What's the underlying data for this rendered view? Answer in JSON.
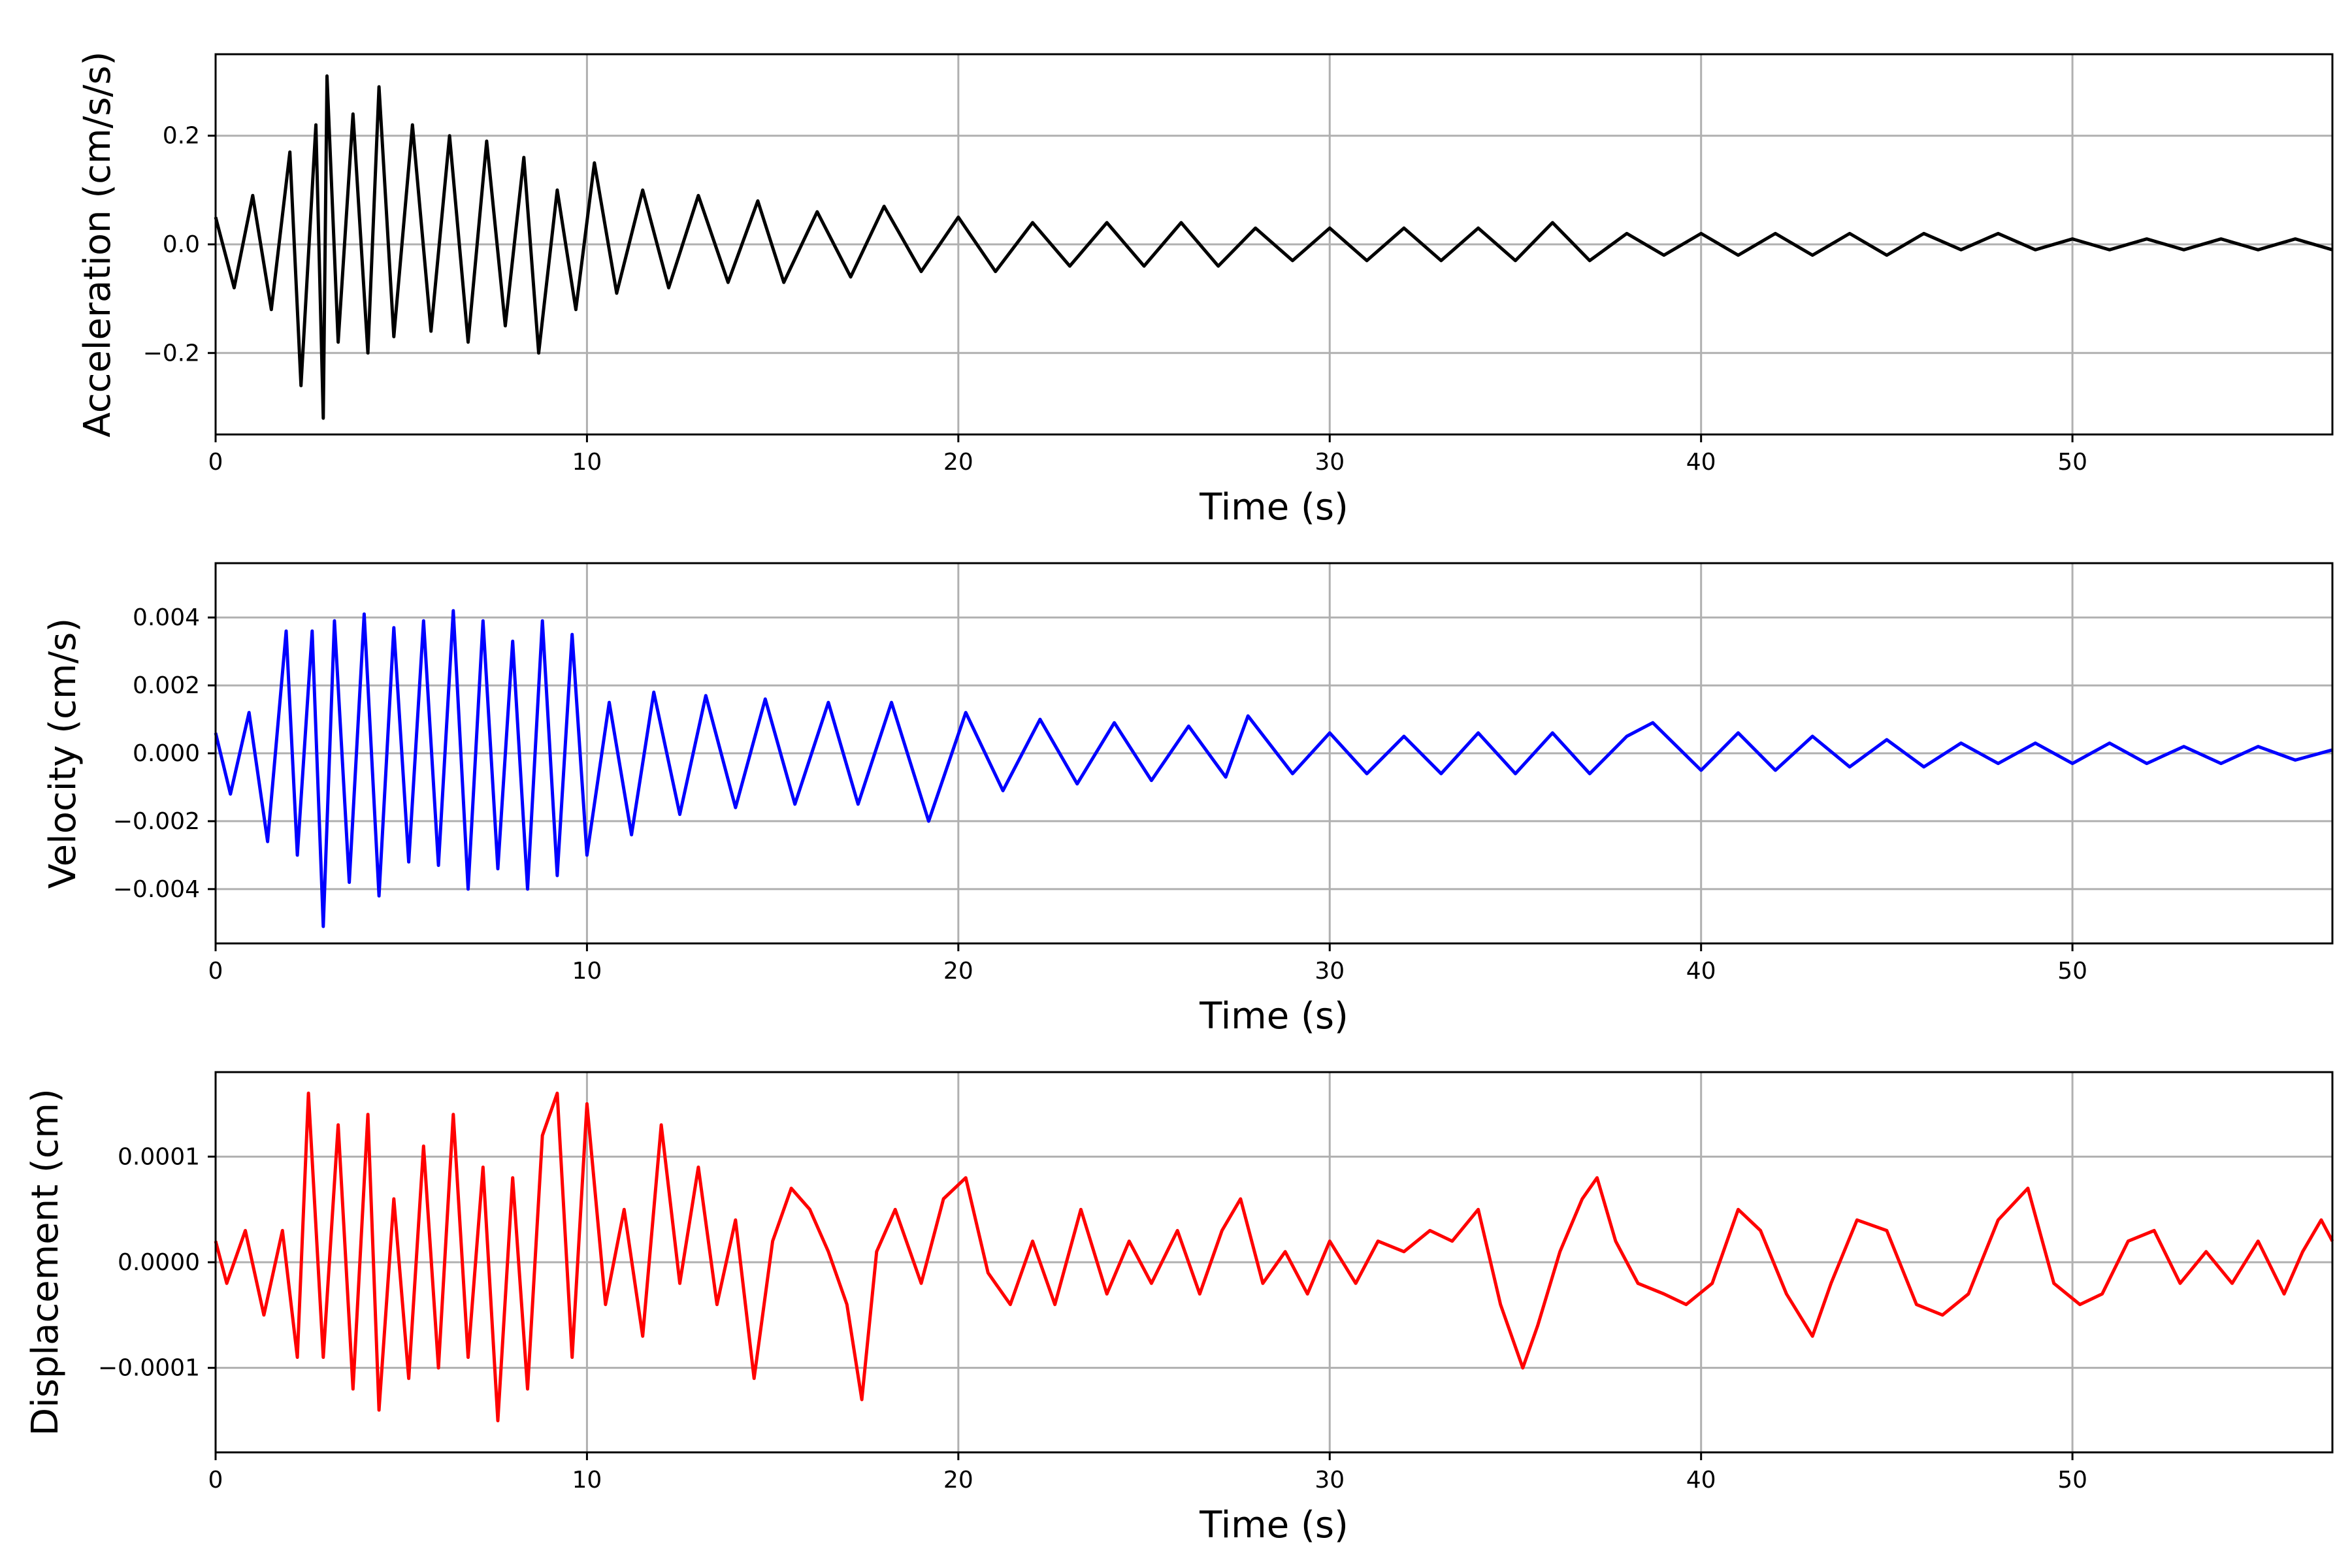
{
  "chart_data": [
    {
      "id": "acceleration",
      "type": "line",
      "title": "",
      "xlabel": "Time (s)",
      "ylabel": "Acceleration (cm/s/s)",
      "xlim": [
        0,
        57
      ],
      "ylim": [
        -0.35,
        0.35
      ],
      "xticks": [
        0,
        10,
        20,
        30,
        40,
        50
      ],
      "xtick_labels": [
        "0",
        "10",
        "20",
        "30",
        "40",
        "50"
      ],
      "yticks": [
        -0.2,
        0.0,
        0.2
      ],
      "ytick_labels": [
        "−0.2",
        "0.0",
        "0.2"
      ],
      "grid": true,
      "legend": "none",
      "series": [
        {
          "color": "#000000",
          "x": [
            0,
            0.5,
            1,
            1.5,
            2,
            2.3,
            2.7,
            2.9,
            3.0,
            3.3,
            3.7,
            4.1,
            4.4,
            4.8,
            5.3,
            5.8,
            6.3,
            6.8,
            7.3,
            7.8,
            8.3,
            8.7,
            9.2,
            9.7,
            10.2,
            10.8,
            11.5,
            12.2,
            13,
            13.8,
            14.6,
            15.3,
            16.2,
            17.1,
            18,
            19,
            20,
            21,
            22,
            23,
            24,
            25,
            26,
            27,
            28,
            29,
            30,
            31,
            32,
            33,
            34,
            35,
            36,
            37,
            38,
            39,
            40,
            41,
            42,
            43,
            44,
            45,
            46,
            47,
            48,
            49,
            50,
            51,
            52,
            53,
            54,
            55,
            56,
            57
          ],
          "y": [
            0.05,
            -0.08,
            0.09,
            -0.12,
            0.17,
            -0.26,
            0.22,
            -0.32,
            0.31,
            -0.18,
            0.24,
            -0.2,
            0.29,
            -0.17,
            0.22,
            -0.16,
            0.2,
            -0.18,
            0.19,
            -0.15,
            0.16,
            -0.2,
            0.1,
            -0.12,
            0.15,
            -0.09,
            0.1,
            -0.08,
            0.09,
            -0.07,
            0.08,
            -0.07,
            0.06,
            -0.06,
            0.07,
            -0.05,
            0.05,
            -0.05,
            0.04,
            -0.04,
            0.04,
            -0.04,
            0.04,
            -0.04,
            0.03,
            -0.03,
            0.03,
            -0.03,
            0.03,
            -0.03,
            0.03,
            -0.03,
            0.04,
            -0.03,
            0.02,
            -0.02,
            0.02,
            -0.02,
            0.02,
            -0.02,
            0.02,
            -0.02,
            0.02,
            -0.01,
            0.02,
            -0.01,
            0.01,
            -0.01,
            0.01,
            -0.01,
            0.01,
            -0.01,
            0.01,
            -0.01
          ]
        }
      ]
    },
    {
      "id": "velocity",
      "type": "line",
      "title": "",
      "xlabel": "Time (s)",
      "ylabel": "Velocity (cm/s)",
      "xlim": [
        0,
        57
      ],
      "ylim": [
        -0.0056,
        0.0056
      ],
      "xticks": [
        0,
        10,
        20,
        30,
        40,
        50
      ],
      "xtick_labels": [
        "0",
        "10",
        "20",
        "30",
        "40",
        "50"
      ],
      "yticks": [
        -0.004,
        -0.002,
        0.0,
        0.002,
        0.004
      ],
      "ytick_labels": [
        "−0.004",
        "−0.002",
        "0.000",
        "0.002",
        "0.004"
      ],
      "grid": true,
      "legend": "none",
      "series": [
        {
          "color": "#0000ff",
          "x": [
            0,
            0.4,
            0.9,
            1.4,
            1.9,
            2.2,
            2.6,
            2.9,
            3.2,
            3.6,
            4.0,
            4.4,
            4.8,
            5.2,
            5.6,
            6.0,
            6.4,
            6.8,
            7.2,
            7.6,
            8.0,
            8.4,
            8.8,
            9.2,
            9.6,
            10.0,
            10.6,
            11.2,
            11.8,
            12.5,
            13.2,
            14.0,
            14.8,
            15.6,
            16.5,
            17.3,
            18.2,
            19.2,
            20.2,
            21.2,
            22.2,
            23.2,
            24.2,
            25.2,
            26.2,
            27.2,
            27.8,
            29,
            30,
            31,
            32,
            33,
            34,
            35,
            36,
            37,
            38,
            38.7,
            40,
            41,
            42,
            43,
            44,
            45,
            46,
            47,
            48,
            49,
            50,
            51,
            52,
            53,
            54,
            55,
            56,
            57
          ],
          "y": [
            0.0006,
            -0.0012,
            0.0012,
            -0.0026,
            0.0036,
            -0.003,
            0.0036,
            -0.0051,
            0.0039,
            -0.0038,
            0.0041,
            -0.0042,
            0.0037,
            -0.0032,
            0.0039,
            -0.0033,
            0.0042,
            -0.004,
            0.0039,
            -0.0034,
            0.0033,
            -0.004,
            0.0039,
            -0.0036,
            0.0035,
            -0.003,
            0.0015,
            -0.0024,
            0.0018,
            -0.0018,
            0.0017,
            -0.0016,
            0.0016,
            -0.0015,
            0.0015,
            -0.0015,
            0.0015,
            -0.002,
            0.0012,
            -0.0011,
            0.001,
            -0.0009,
            0.0009,
            -0.0008,
            0.0008,
            -0.0007,
            0.0011,
            -0.0006,
            0.0006,
            -0.0006,
            0.0005,
            -0.0006,
            0.0006,
            -0.0006,
            0.0006,
            -0.0006,
            0.0005,
            0.0009,
            -0.0005,
            0.0006,
            -0.0005,
            0.0005,
            -0.0004,
            0.0004,
            -0.0004,
            0.0003,
            -0.0003,
            0.0003,
            -0.0003,
            0.0003,
            -0.0003,
            0.0002,
            -0.0003,
            0.0002,
            -0.0002,
            0.0001
          ]
        }
      ]
    },
    {
      "id": "displacement",
      "type": "line",
      "title": "",
      "xlabel": "Time (s)",
      "ylabel": "Displacement (cm)",
      "xlim": [
        0,
        57
      ],
      "ylim": [
        -0.00018,
        0.00018
      ],
      "xticks": [
        0,
        10,
        20,
        30,
        40,
        50
      ],
      "xtick_labels": [
        "0",
        "10",
        "20",
        "30",
        "40",
        "50"
      ],
      "yticks": [
        -0.0001,
        0.0,
        0.0001
      ],
      "ytick_labels": [
        "−0.0001",
        "0.0000",
        "0.0001"
      ],
      "grid": true,
      "legend": "none",
      "series": [
        {
          "color": "#ff0000",
          "x": [
            0,
            0.3,
            0.8,
            1.3,
            1.8,
            2.2,
            2.5,
            2.9,
            3.3,
            3.7,
            4.1,
            4.4,
            4.8,
            5.2,
            5.6,
            6.0,
            6.4,
            6.8,
            7.2,
            7.6,
            8.0,
            8.4,
            8.8,
            9.2,
            9.6,
            10.0,
            10.5,
            11.0,
            11.5,
            12.0,
            12.5,
            13.0,
            13.5,
            14.0,
            14.5,
            15.0,
            15.5,
            16.0,
            16.5,
            17.0,
            17.4,
            17.8,
            18.3,
            19,
            19.6,
            20.2,
            20.8,
            21.4,
            22,
            22.6,
            23.3,
            24,
            24.6,
            25.2,
            25.9,
            26.5,
            27.1,
            27.6,
            28.2,
            28.8,
            29.4,
            30,
            30.7,
            31.3,
            32,
            32.7,
            33.3,
            34,
            34.6,
            35.2,
            35.6,
            36.2,
            36.8,
            37.2,
            37.7,
            38.3,
            39,
            39.6,
            40.3,
            41,
            41.6,
            42.3,
            43,
            43.5,
            44.2,
            45,
            45.8,
            46.5,
            47.2,
            48,
            48.8,
            49.5,
            50.2,
            50.8,
            51.5,
            52.2,
            52.9,
            53.6,
            54.3,
            55,
            55.7,
            56.2,
            56.7,
            57
          ],
          "y": [
            2e-05,
            -2e-05,
            3e-05,
            -5e-05,
            3e-05,
            -9e-05,
            0.00016,
            -9e-05,
            0.00013,
            -0.00012,
            0.00014,
            -0.00014,
            6e-05,
            -0.00011,
            0.00011,
            -0.0001,
            0.00014,
            -9e-05,
            9e-05,
            -0.00015,
            8e-05,
            -0.00012,
            0.00012,
            0.00016,
            -9e-05,
            0.00015,
            -4e-05,
            5e-05,
            -7e-05,
            0.00013,
            -2e-05,
            9e-05,
            -4e-05,
            4e-05,
            -0.00011,
            2e-05,
            7e-05,
            5e-05,
            1e-05,
            -4e-05,
            -0.00013,
            1e-05,
            5e-05,
            -2e-05,
            6e-05,
            8e-05,
            -1e-05,
            -4e-05,
            2e-05,
            -4e-05,
            5e-05,
            -3e-05,
            2e-05,
            -2e-05,
            3e-05,
            -3e-05,
            3e-05,
            6e-05,
            -2e-05,
            1e-05,
            -3e-05,
            2e-05,
            -2e-05,
            2e-05,
            1e-05,
            3e-05,
            2e-05,
            5e-05,
            -4e-05,
            -0.0001,
            -6e-05,
            1e-05,
            6e-05,
            8e-05,
            2e-05,
            -2e-05,
            -3e-05,
            -4e-05,
            -2e-05,
            5e-05,
            3e-05,
            -3e-05,
            -7e-05,
            -2e-05,
            4e-05,
            3e-05,
            -4e-05,
            -5e-05,
            -3e-05,
            4e-05,
            7e-05,
            -2e-05,
            -4e-05,
            -3e-05,
            2e-05,
            3e-05,
            -2e-05,
            1e-05,
            -2e-05,
            2e-05,
            -3e-05,
            1e-05,
            4e-05,
            2e-05
          ]
        }
      ]
    }
  ]
}
